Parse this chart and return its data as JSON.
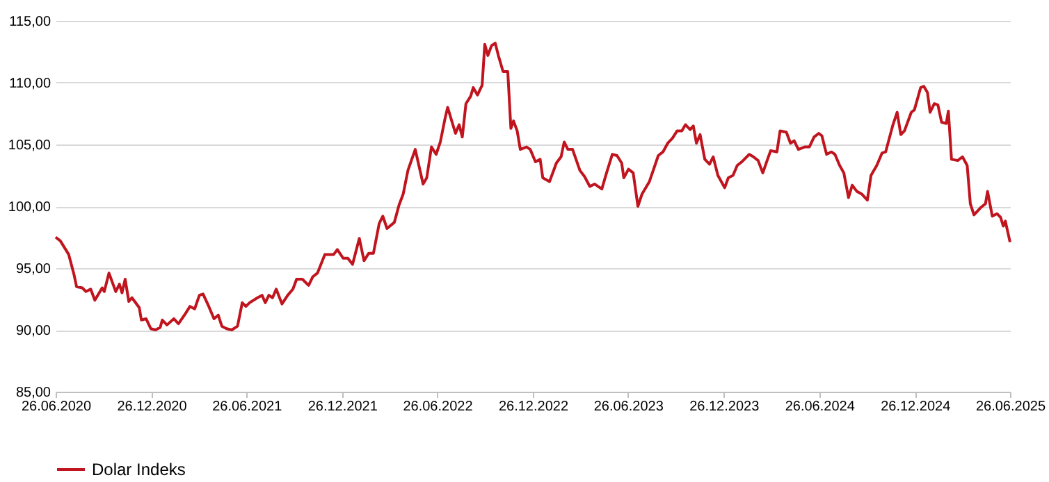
{
  "chart_data": {
    "type": "line",
    "x": [
      "2020-06-26",
      "2020-07-05",
      "2020-07-21",
      "2020-07-31",
      "2020-08-05",
      "2020-08-16",
      "2020-08-23",
      "2020-09-01",
      "2020-09-09",
      "2020-09-23",
      "2020-09-27",
      "2020-10-06",
      "2020-10-19",
      "2020-10-26",
      "2020-10-31",
      "2020-11-06",
      "2020-11-13",
      "2020-11-19",
      "2020-12-03",
      "2020-12-07",
      "2020-12-16",
      "2020-12-25",
      "2021-01-03",
      "2021-01-12",
      "2021-01-16",
      "2021-01-25",
      "2021-02-07",
      "2021-02-16",
      "2021-03-01",
      "2021-03-10",
      "2021-03-19",
      "2021-03-28",
      "2021-04-04",
      "2021-04-15",
      "2021-04-25",
      "2021-05-03",
      "2021-05-10",
      "2021-05-19",
      "2021-05-29",
      "2021-06-09",
      "2021-06-18",
      "2021-06-25",
      "2021-07-02",
      "2021-07-17",
      "2021-07-26",
      "2021-08-01",
      "2021-08-08",
      "2021-08-15",
      "2021-08-22",
      "2021-09-02",
      "2021-09-13",
      "2021-09-23",
      "2021-09-30",
      "2021-10-11",
      "2021-10-23",
      "2021-10-31",
      "2021-11-09",
      "2021-11-23",
      "2021-12-10",
      "2021-12-17",
      "2021-12-28",
      "2022-01-06",
      "2022-01-15",
      "2022-01-28",
      "2022-02-06",
      "2022-02-15",
      "2022-02-24",
      "2022-03-07",
      "2022-03-14",
      "2022-03-22",
      "2022-04-05",
      "2022-04-14",
      "2022-04-22",
      "2022-05-01",
      "2022-05-15",
      "2022-05-30",
      "2022-06-06",
      "2022-06-15",
      "2022-06-24",
      "2022-07-02",
      "2022-07-11",
      "2022-07-16",
      "2022-07-31",
      "2022-08-07",
      "2022-08-13",
      "2022-08-20",
      "2022-08-29",
      "2022-09-03",
      "2022-09-11",
      "2022-09-20",
      "2022-09-25",
      "2022-10-01",
      "2022-10-08",
      "2022-10-15",
      "2022-10-21",
      "2022-10-30",
      "2022-11-08",
      "2022-11-14",
      "2022-11-19",
      "2022-11-26",
      "2022-12-02",
      "2022-12-14",
      "2022-12-21",
      "2022-12-31",
      "2023-01-09",
      "2023-01-14",
      "2023-01-27",
      "2023-02-09",
      "2023-02-18",
      "2023-02-24",
      "2023-03-03",
      "2023-03-12",
      "2023-03-26",
      "2023-04-04",
      "2023-04-14",
      "2023-04-23",
      "2023-05-07",
      "2023-05-16",
      "2023-05-27",
      "2023-06-05",
      "2023-06-14",
      "2023-06-18",
      "2023-06-27",
      "2023-07-06",
      "2023-07-15",
      "2023-07-23",
      "2023-08-06",
      "2023-08-23",
      "2023-09-01",
      "2023-09-10",
      "2023-09-19",
      "2023-09-28",
      "2023-10-07",
      "2023-10-14",
      "2023-10-23",
      "2023-10-29",
      "2023-11-04",
      "2023-11-11",
      "2023-11-20",
      "2023-11-29",
      "2023-12-06",
      "2023-12-15",
      "2023-12-28",
      "2024-01-04",
      "2024-01-13",
      "2024-01-21",
      "2024-01-30",
      "2024-02-13",
      "2024-02-21",
      "2024-03-01",
      "2024-03-10",
      "2024-03-19",
      "2024-03-25",
      "2024-04-06",
      "2024-04-12",
      "2024-04-24",
      "2024-05-02",
      "2024-05-09",
      "2024-05-17",
      "2024-05-29",
      "2024-06-07",
      "2024-06-16",
      "2024-06-25",
      "2024-07-01",
      "2024-07-10",
      "2024-07-19",
      "2024-07-26",
      "2024-08-04",
      "2024-08-12",
      "2024-08-21",
      "2024-08-28",
      "2024-09-06",
      "2024-09-15",
      "2024-09-26",
      "2024-10-03",
      "2024-10-14",
      "2024-10-24",
      "2024-10-31",
      "2024-11-14",
      "2024-11-22",
      "2024-11-29",
      "2024-12-06",
      "2024-12-19",
      "2024-12-25",
      "2025-01-06",
      "2025-01-12",
      "2025-01-19",
      "2025-01-24",
      "2025-02-01",
      "2025-02-08",
      "2025-02-15",
      "2025-02-24",
      "2025-02-28",
      "2025-03-06",
      "2025-03-18",
      "2025-03-27",
      "2025-04-05",
      "2025-04-11",
      "2025-04-18",
      "2025-05-01",
      "2025-05-10",
      "2025-05-14",
      "2025-05-23",
      "2025-06-01",
      "2025-06-08",
      "2025-06-13",
      "2025-06-17",
      "2025-06-26"
    ],
    "series": [
      {
        "name": "Dolar Indeks",
        "color": "#c0141e",
        "values": [
          97.5,
          97.2,
          96.1,
          94.5,
          93.5,
          93.4,
          93.1,
          93.3,
          92.4,
          93.4,
          93.1,
          94.6,
          93.1,
          93.7,
          93.0,
          94.1,
          92.3,
          92.6,
          91.8,
          90.8,
          90.9,
          90.1,
          90.0,
          90.2,
          90.8,
          90.4,
          90.9,
          90.5,
          91.3,
          91.9,
          91.7,
          92.8,
          92.9,
          91.9,
          90.9,
          91.2,
          90.3,
          90.1,
          90.0,
          90.3,
          92.2,
          91.9,
          92.2,
          92.6,
          92.8,
          92.2,
          92.8,
          92.6,
          93.3,
          92.1,
          92.8,
          93.3,
          94.1,
          94.1,
          93.6,
          94.3,
          94.6,
          96.1,
          96.1,
          96.5,
          95.8,
          95.8,
          95.3,
          97.4,
          95.6,
          96.2,
          96.2,
          98.6,
          99.2,
          98.2,
          98.7,
          100.1,
          101.0,
          102.9,
          104.6,
          101.8,
          102.3,
          104.8,
          104.2,
          105.2,
          107.1,
          108.0,
          105.9,
          106.6,
          105.6,
          108.3,
          108.9,
          109.6,
          109.0,
          109.8,
          113.1,
          112.2,
          113.0,
          113.2,
          112.2,
          110.9,
          110.9,
          106.3,
          106.9,
          106.1,
          104.6,
          104.8,
          104.6,
          103.6,
          103.8,
          102.3,
          102.0,
          103.5,
          104.0,
          105.2,
          104.6,
          104.6,
          102.9,
          102.4,
          101.6,
          101.8,
          101.4,
          102.7,
          104.2,
          104.1,
          103.5,
          102.3,
          103.0,
          102.7,
          100.0,
          101.0,
          102.0,
          104.1,
          104.4,
          105.1,
          105.5,
          106.1,
          106.1,
          106.6,
          106.2,
          106.5,
          105.1,
          105.8,
          103.8,
          103.4,
          104.0,
          102.5,
          101.5,
          102.3,
          102.5,
          103.3,
          103.6,
          104.2,
          104.0,
          103.7,
          102.7,
          103.8,
          104.5,
          104.4,
          106.1,
          106.0,
          105.1,
          105.3,
          104.6,
          104.8,
          104.8,
          105.6,
          105.9,
          105.7,
          104.2,
          104.4,
          104.2,
          103.3,
          102.7,
          100.7,
          101.7,
          101.2,
          101.0,
          100.5,
          102.5,
          103.3,
          104.3,
          104.4,
          106.6,
          107.6,
          105.8,
          106.1,
          107.6,
          107.8,
          109.6,
          109.7,
          109.2,
          107.6,
          108.3,
          108.2,
          106.8,
          106.7,
          107.7,
          103.8,
          103.7,
          104.0,
          103.3,
          100.2,
          99.3,
          99.9,
          100.2,
          101.2,
          99.2,
          99.4,
          99.1,
          98.4,
          98.8,
          97.1
        ]
      }
    ],
    "xlim": [
      "2020-06-26",
      "2025-06-26"
    ],
    "xticks": [
      {
        "value": "2020-06-26",
        "label": "26.06.2020"
      },
      {
        "value": "2020-12-26",
        "label": "26.12.2020"
      },
      {
        "value": "2021-06-26",
        "label": "26.06.2021"
      },
      {
        "value": "2021-12-26",
        "label": "26.12.2021"
      },
      {
        "value": "2022-06-26",
        "label": "26.06.2022"
      },
      {
        "value": "2022-12-26",
        "label": "26.12.2022"
      },
      {
        "value": "2023-06-26",
        "label": "26.06.2023"
      },
      {
        "value": "2023-12-26",
        "label": "26.12.2023"
      },
      {
        "value": "2024-06-26",
        "label": "26.06.2024"
      },
      {
        "value": "2024-12-26",
        "label": "26.12.2024"
      },
      {
        "value": "2025-06-26",
        "label": "26.06.2025"
      }
    ],
    "ylim": [
      85,
      115
    ],
    "yticks": [
      {
        "value": 85,
        "label": "85,00"
      },
      {
        "value": 90,
        "label": "90,00"
      },
      {
        "value": 95,
        "label": "95,00"
      },
      {
        "value": 100,
        "label": "100,00"
      },
      {
        "value": 105,
        "label": "105,00"
      },
      {
        "value": 110,
        "label": "110,00"
      },
      {
        "value": 115,
        "label": "115,00"
      }
    ],
    "grid": "y",
    "legend": "bottom",
    "marker": "none",
    "line_style": "solid"
  }
}
